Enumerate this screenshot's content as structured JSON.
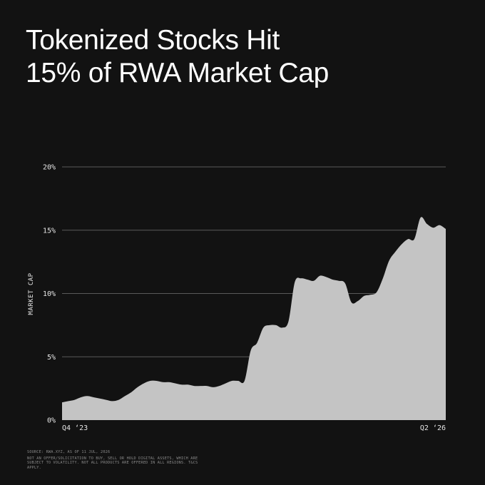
{
  "header": {
    "title_line1": "Tokenized Stocks Hit",
    "title_line2": "15% of RWA Market Cap"
  },
  "footer": {
    "source": "SOURCE: RWA.XYZ, AS OF 11 JUL, 2026",
    "disclaimer": "NOT AN OFFER/SOLICITATION TO BUY, SELL OR HOLD DIGITAL ASSETS, WHICH ARE SUBJECT TO VOLATILITY. NOT ALL PRODUCTS ARE OFFERED IN ALL REGIONS. T&CS APPLY."
  },
  "colors": {
    "background": "#121212",
    "area_fill": "#c4c4c4",
    "grid": "#5a5a5a"
  },
  "chart_data": {
    "type": "area",
    "title": "Tokenized Stocks Hit 15% of RWA Market Cap",
    "ylabel": "MARKET CAP",
    "xlabel": "",
    "ylim": [
      0,
      20
    ],
    "y_ticks": [
      0,
      5,
      10,
      15,
      20
    ],
    "y_tick_labels": [
      "0%",
      "5%",
      "10%",
      "15%",
      "20%"
    ],
    "x_tick_labels": [
      "Q4 ‘23",
      "Q2 ‘26"
    ],
    "grid": true,
    "series": [
      {
        "values": [
          1.4,
          1.5,
          1.6,
          1.8,
          1.9,
          1.8,
          1.7,
          1.6,
          1.5,
          1.6,
          1.9,
          2.2,
          2.6,
          2.9,
          3.1,
          3.1,
          3.0,
          3.0,
          2.9,
          2.8,
          2.8,
          2.7,
          2.7,
          2.7,
          2.6,
          2.7,
          2.9,
          3.1,
          3.1,
          3.1,
          5.5,
          6.1,
          7.3,
          7.5,
          7.5,
          7.3,
          7.8,
          10.9,
          11.2,
          11.1,
          11.0,
          11.4,
          11.3,
          11.1,
          11.0,
          10.8,
          9.3,
          9.4,
          9.8,
          9.9,
          10.1,
          11.2,
          12.6,
          13.3,
          13.9,
          14.3,
          14.3,
          16.0,
          15.5,
          15.2,
          15.4,
          15.1
        ]
      }
    ]
  }
}
